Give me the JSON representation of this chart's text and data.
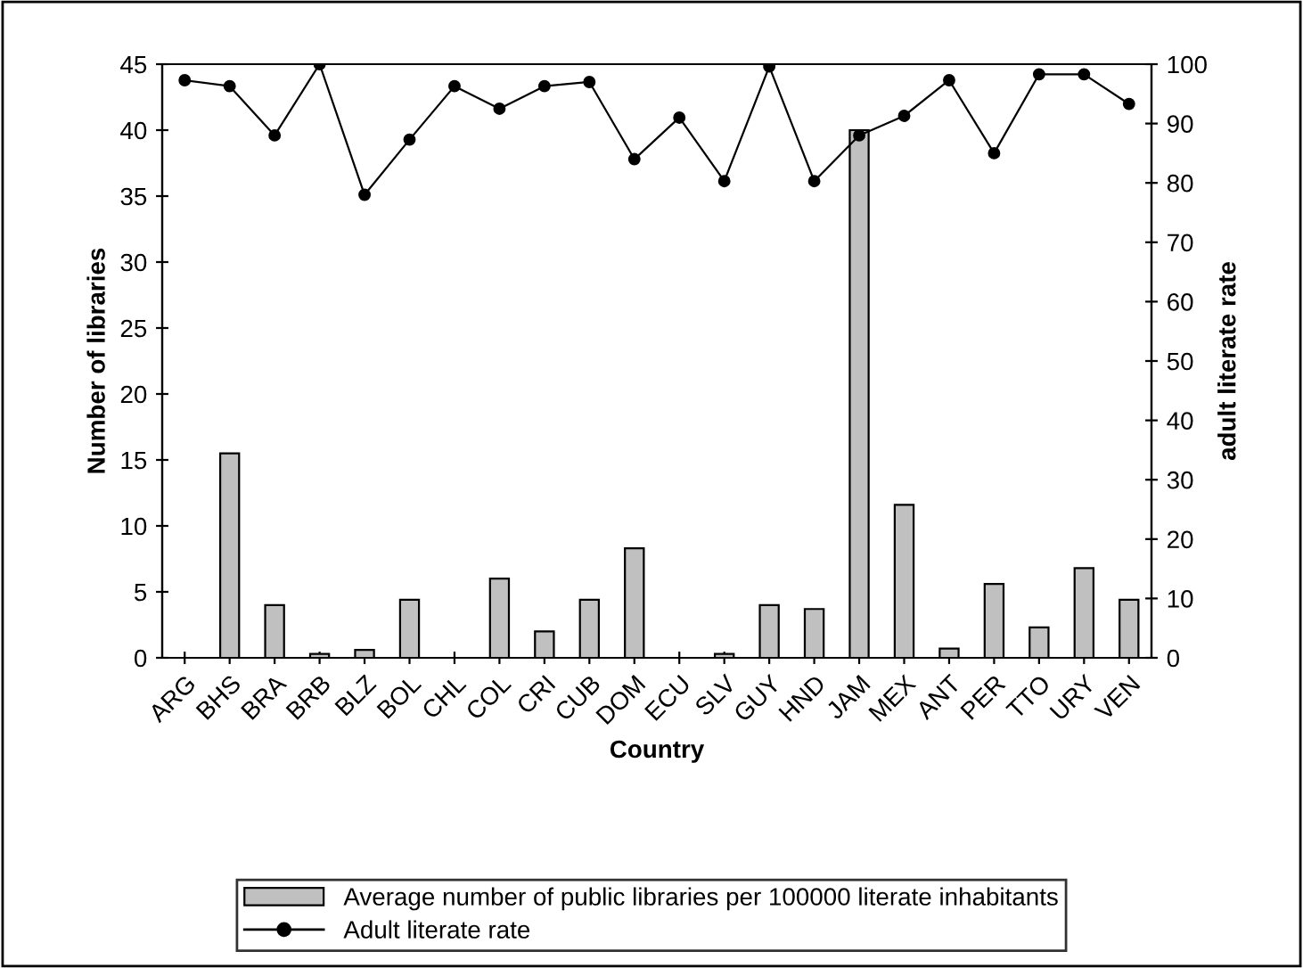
{
  "chart_data": {
    "type": "bar",
    "xlabel": "Country",
    "ylabel": "Number of libraries",
    "y2label": "adult literate rate",
    "categories": [
      "ARG",
      "BHS",
      "BRA",
      "BRB",
      "BLZ",
      "BOL",
      "CHL",
      "COL",
      "CRI",
      "CUB",
      "DOM",
      "ECU",
      "SLV",
      "GUY",
      "HND",
      "JAM",
      "MEX",
      "ANT",
      "PER",
      "TTO",
      "URY",
      "VEN"
    ],
    "series": [
      {
        "name": "Average number of public libraries per 100000 literate inhabitants",
        "color": "#c0c0c0",
        "values": [
          null,
          15.5,
          4,
          0.3,
          0.6,
          4.4,
          null,
          6,
          2,
          4.4,
          8.3,
          null,
          0.3,
          4,
          3.7,
          40,
          11.6,
          0.7,
          5.6,
          2.3,
          6.8,
          4.4
        ]
      },
      {
        "name": "Adult literate rate",
        "type": "line",
        "axis": "y2",
        "color": "#000000",
        "marker": "circle",
        "values": [
          97.3,
          96.3,
          88,
          100,
          78,
          87.3,
          96.3,
          92.5,
          96.3,
          97,
          84,
          91,
          80.3,
          99.6,
          80.3,
          88,
          91.3,
          97.3,
          85,
          98.3,
          98.3,
          93.3
        ]
      }
    ],
    "ylim": [
      0,
      45
    ],
    "yticks": [
      0,
      5,
      10,
      15,
      20,
      25,
      30,
      35,
      40,
      45
    ],
    "y2lim": [
      0,
      100
    ],
    "y2ticks": [
      0,
      10,
      20,
      30,
      40,
      50,
      60,
      70,
      80,
      90,
      100
    ],
    "grid": false,
    "legend": "bottom"
  }
}
